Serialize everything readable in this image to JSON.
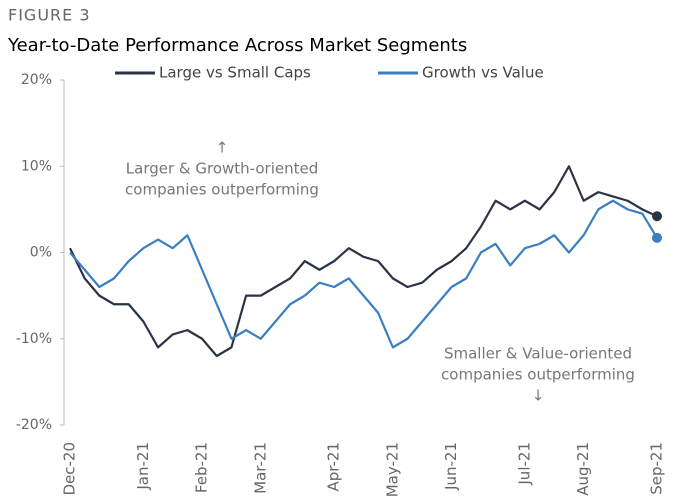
{
  "chart_data": {
    "type": "line",
    "figure_label": "FIGURE 3",
    "title": "Year-to-Date Performance Across Market Segments",
    "categories": [
      "Dec-20",
      null,
      null,
      null,
      null,
      "Jan-21",
      null,
      null,
      null,
      "Feb-21",
      null,
      null,
      null,
      "Mar-21",
      null,
      null,
      null,
      null,
      "Apr-21",
      null,
      null,
      null,
      "May-21",
      null,
      null,
      null,
      "Jun-21",
      null,
      null,
      null,
      null,
      "Jul-21",
      null,
      null,
      null,
      "Aug-21",
      null,
      null,
      null,
      null,
      "Sep-21"
    ],
    "series": [
      {
        "name": "Large vs Small Caps",
        "color": "#2b3445",
        "values": [
          0.5,
          -3,
          -5,
          -6,
          -6,
          -8,
          -11,
          -9.5,
          -9,
          -10,
          -12,
          -11,
          -5,
          -5,
          -4,
          -3,
          -1,
          -2,
          -1,
          0.5,
          -0.5,
          -1,
          -3,
          -4,
          -3.5,
          -2,
          -1,
          0.5,
          3,
          6,
          5,
          6,
          5,
          7,
          10,
          6,
          7,
          6.5,
          6,
          5,
          4.2
        ]
      },
      {
        "name": "Growth vs Value",
        "color": "#3a7fc1",
        "values": [
          0,
          -2,
          -4,
          -3,
          -1,
          0.5,
          1.5,
          0.5,
          2,
          -2,
          -6,
          -10,
          -9,
          -10,
          -8,
          -6,
          -5,
          -3.5,
          -4,
          -3,
          -5,
          -7,
          -11,
          -10,
          -8,
          -6,
          -4,
          -3,
          0,
          1,
          -1.5,
          0.5,
          1,
          2,
          0,
          2,
          5,
          6,
          5,
          4.5,
          1.7
        ]
      }
    ],
    "ylim": [
      -20,
      20
    ],
    "yticks": [
      {
        "value": -20,
        "label": "-20%"
      },
      {
        "value": -10,
        "label": "-10%"
      },
      {
        "value": 0,
        "label": "0%"
      },
      {
        "value": 10,
        "label": "10%"
      },
      {
        "value": 20,
        "label": "20%"
      }
    ],
    "legend": "top",
    "end_markers": true,
    "annotations": [
      {
        "lines": [
          "↑",
          "Larger & Growth-oriented",
          "companies outperforming"
        ]
      },
      {
        "lines": [
          "Smaller & Value-oriented",
          "companies outperforming",
          "↓"
        ]
      }
    ]
  }
}
